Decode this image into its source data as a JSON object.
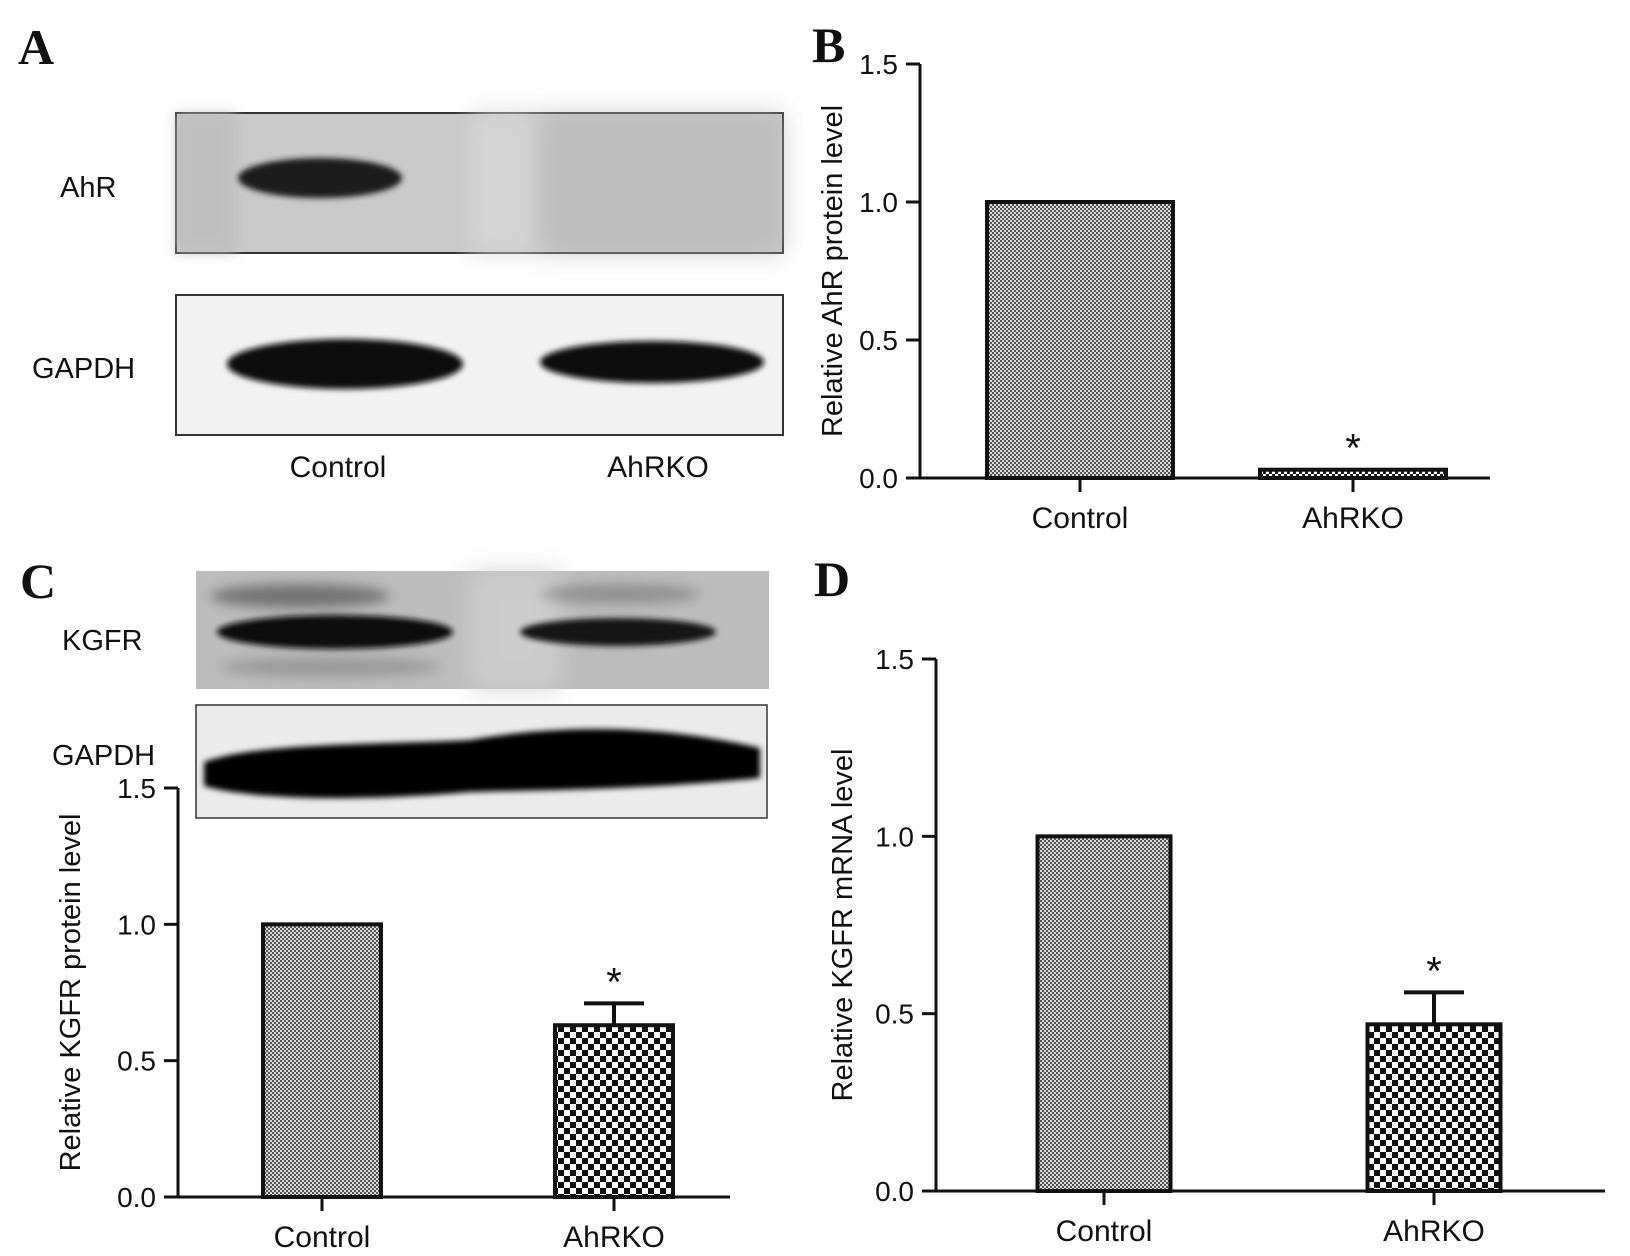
{
  "panels": {
    "A": {
      "letter": "A",
      "blots": [
        {
          "label": "AhR"
        },
        {
          "label": "GAPDH"
        }
      ],
      "lane_labels": [
        "Control",
        "AhRKO"
      ]
    },
    "C": {
      "letter": "C",
      "blots": [
        {
          "label": "KGFR"
        },
        {
          "label": "GAPDH"
        }
      ]
    }
  },
  "chart_data": [
    {
      "panel": "B",
      "letter": "B",
      "type": "bar",
      "categories": [
        "Control",
        "AhRKO"
      ],
      "values": [
        1.0,
        0.03
      ],
      "errors": [
        0,
        0
      ],
      "significance": [
        "",
        "*"
      ],
      "ylabel": "Relative AhR protein level",
      "ylim": [
        0,
        1.5
      ],
      "yticks": [
        "0.0",
        "0.5",
        "1.0",
        "1.5"
      ],
      "grid": false
    },
    {
      "panel": "C",
      "letter": "",
      "type": "bar",
      "categories": [
        "Control",
        "AhRKO"
      ],
      "values": [
        1.0,
        0.63
      ],
      "errors": [
        0,
        0.08
      ],
      "significance": [
        "",
        "*"
      ],
      "ylabel": "Relative KGFR protein level",
      "ylim": [
        0,
        1.5
      ],
      "yticks": [
        "0.0",
        "0.5",
        "1.0",
        "1.5"
      ],
      "grid": false
    },
    {
      "panel": "D",
      "letter": "D",
      "type": "bar",
      "categories": [
        "Control",
        "AhRKO"
      ],
      "values": [
        1.0,
        0.47
      ],
      "errors": [
        0,
        0.09
      ],
      "significance": [
        "",
        "*"
      ],
      "ylabel": "Relative KGFR mRNA level",
      "ylim": [
        0,
        1.5
      ],
      "yticks": [
        "0.0",
        "0.5",
        "1.0",
        "1.5"
      ],
      "grid": false
    }
  ]
}
